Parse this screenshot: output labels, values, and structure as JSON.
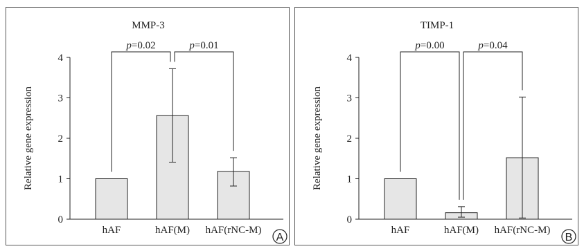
{
  "chart_data": [
    {
      "type": "bar",
      "title": "MMP-3",
      "ylabel": "Relative gene expression",
      "xlabel": "",
      "categories": [
        "hAF",
        "hAF(M)",
        "hAF(rNC-M)"
      ],
      "values": [
        1.0,
        2.56,
        1.18
      ],
      "error_low": [
        null,
        1.41,
        0.82
      ],
      "error_high": [
        null,
        3.72,
        1.52
      ],
      "ylim": [
        0,
        4
      ],
      "yticks": [
        "0",
        "1",
        "2",
        "3",
        "4"
      ],
      "bar_color": "#e6e6e6",
      "annotations": [
        {
          "from": 0,
          "to": 1,
          "p_label": "p",
          "value_text": "=0.02"
        },
        {
          "from": 1,
          "to": 2,
          "p_label": "p",
          "value_text": "=0.01"
        }
      ],
      "panel_label": "A"
    },
    {
      "type": "bar",
      "title": "TIMP-1",
      "ylabel": "Relative gene expression",
      "xlabel": "",
      "categories": [
        "hAF",
        "hAF(M)",
        "hAF(rNC-M)"
      ],
      "values": [
        1.0,
        0.16,
        1.52
      ],
      "error_low": [
        null,
        0.05,
        0.03
      ],
      "error_high": [
        null,
        0.31,
        3.02
      ],
      "ylim": [
        0,
        4
      ],
      "yticks": [
        "0",
        "1",
        "2",
        "3",
        "4"
      ],
      "bar_color": "#e6e6e6",
      "annotations": [
        {
          "from": 0,
          "to": 1,
          "p_label": "p",
          "value_text": "=0.00"
        },
        {
          "from": 1,
          "to": 2,
          "p_label": "p",
          "value_text": "=0.04"
        }
      ],
      "panel_label": "B"
    }
  ]
}
